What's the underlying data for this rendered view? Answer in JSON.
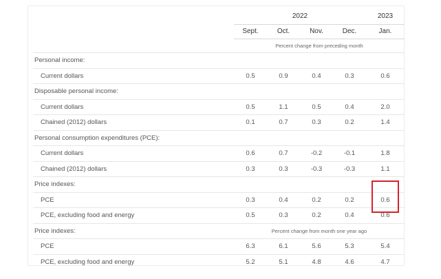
{
  "header": {
    "year_2022": "2022",
    "year_2023": "2023",
    "months": [
      "Sept.",
      "Oct.",
      "Nov.",
      "Dec.",
      "Jan."
    ],
    "unit_monthly": "Percent change from preceding month",
    "unit_yearly": "Percent change from month one year ago"
  },
  "rows": [
    {
      "label": "Personal income:",
      "values": []
    },
    {
      "label": "Current dollars",
      "values": [
        "0.5",
        "0.9",
        "0.4",
        "0.3",
        "0.6"
      ]
    },
    {
      "label": "Disposable personal income:",
      "values": []
    },
    {
      "label": "Current dollars",
      "values": [
        "0.5",
        "1.1",
        "0.5",
        "0.4",
        "2.0"
      ]
    },
    {
      "label": "Chained (2012) dollars",
      "values": [
        "0.1",
        "0.7",
        "0.3",
        "0.2",
        "1.4"
      ]
    },
    {
      "label": "Personal consumption expenditures (PCE):",
      "values": []
    },
    {
      "label": "Current dollars",
      "values": [
        "0.6",
        "0.7",
        "-0.2",
        "-0.1",
        "1.8"
      ]
    },
    {
      "label": "Chained (2012) dollars",
      "values": [
        "0.3",
        "0.3",
        "-0.3",
        "-0.3",
        "1.1"
      ]
    },
    {
      "label": "Price indexes:",
      "values": []
    },
    {
      "label": "PCE",
      "values": [
        "0.3",
        "0.4",
        "0.2",
        "0.2",
        "0.6"
      ]
    },
    {
      "label": "PCE, excluding food and energy",
      "values": [
        "0.5",
        "0.3",
        "0.2",
        "0.4",
        "0.6"
      ]
    },
    {
      "label": "Price indexes:",
      "values": []
    },
    {
      "label": "PCE",
      "values": [
        "6.3",
        "6.1",
        "5.6",
        "5.3",
        "5.4"
      ]
    },
    {
      "label": "PCE, excluding food and energy",
      "values": [
        "5.2",
        "5.1",
        "4.8",
        "4.6",
        "4.7"
      ]
    }
  ],
  "colors": {
    "highlight_border": "#d2232a",
    "text": "#555555",
    "rule": "#e6e6e6"
  }
}
